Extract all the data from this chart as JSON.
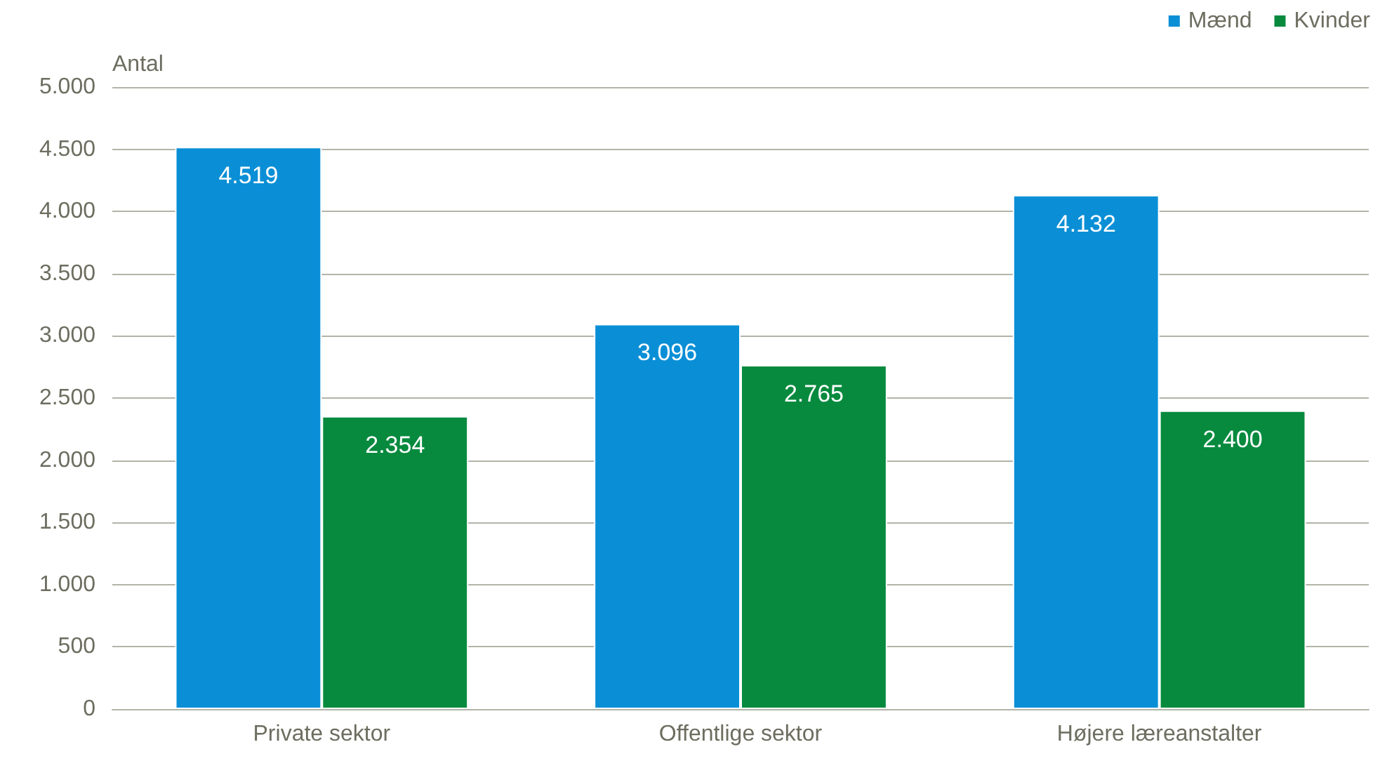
{
  "chart_data": {
    "type": "bar",
    "ylabel": "Antal",
    "categories": [
      "Private sektor",
      "Offentlige sektor",
      "Højere læreanstalter"
    ],
    "series": [
      {
        "name": "Mænd",
        "color": "#0a8fd6",
        "values": [
          4519,
          3096,
          4132
        ],
        "value_labels": [
          "4.519",
          "3.096",
          "4.132"
        ]
      },
      {
        "name": "Kvinder",
        "color": "#078a3e",
        "values": [
          2354,
          2765,
          2400
        ],
        "value_labels": [
          "2.354",
          "2.765",
          "2.400"
        ]
      }
    ],
    "ylim": [
      0,
      5000
    ],
    "yticks": [
      0,
      {
        "value": 500,
        "label": "500"
      },
      {
        "value": 1000,
        "label": "1.000"
      },
      {
        "value": 1500,
        "label": "1.500"
      },
      {
        "value": 2000,
        "label": "2.000"
      },
      {
        "value": 2500,
        "label": "2.500"
      },
      {
        "value": 3000,
        "label": "3.000"
      },
      {
        "value": 3500,
        "label": "3.500"
      },
      {
        "value": 4000,
        "label": "4.000"
      },
      {
        "value": 4500,
        "label": "4.500"
      },
      {
        "value": 5000,
        "label": "5.000"
      }
    ],
    "grid": "y",
    "legend": "top right"
  }
}
